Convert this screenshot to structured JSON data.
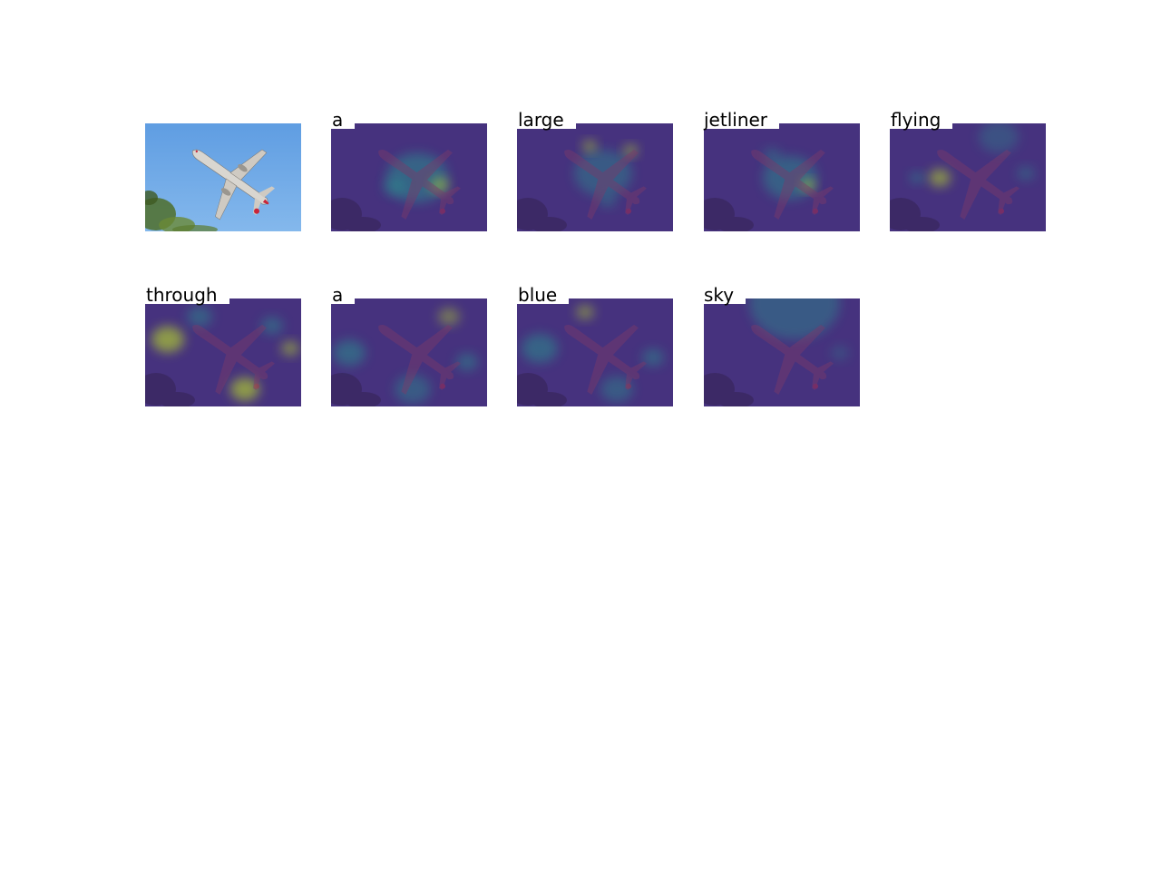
{
  "figure": {
    "original_label": "",
    "words": [
      "a",
      "large",
      "jetliner",
      "flying",
      "through",
      "a",
      "blue",
      "sky"
    ]
  },
  "colors": {
    "sky_top": "#5f9de2",
    "sky_bottom": "#84b8ec",
    "foliage": "#4f6f2a",
    "fuselage": "#d9d6d0",
    "tail_red": "#c8253a",
    "map_base": "#46327e",
    "map_mid": "#2a8c8e",
    "map_high": "#bddf26"
  },
  "icons": {
    "aircraft": "airplane-icon"
  }
}
